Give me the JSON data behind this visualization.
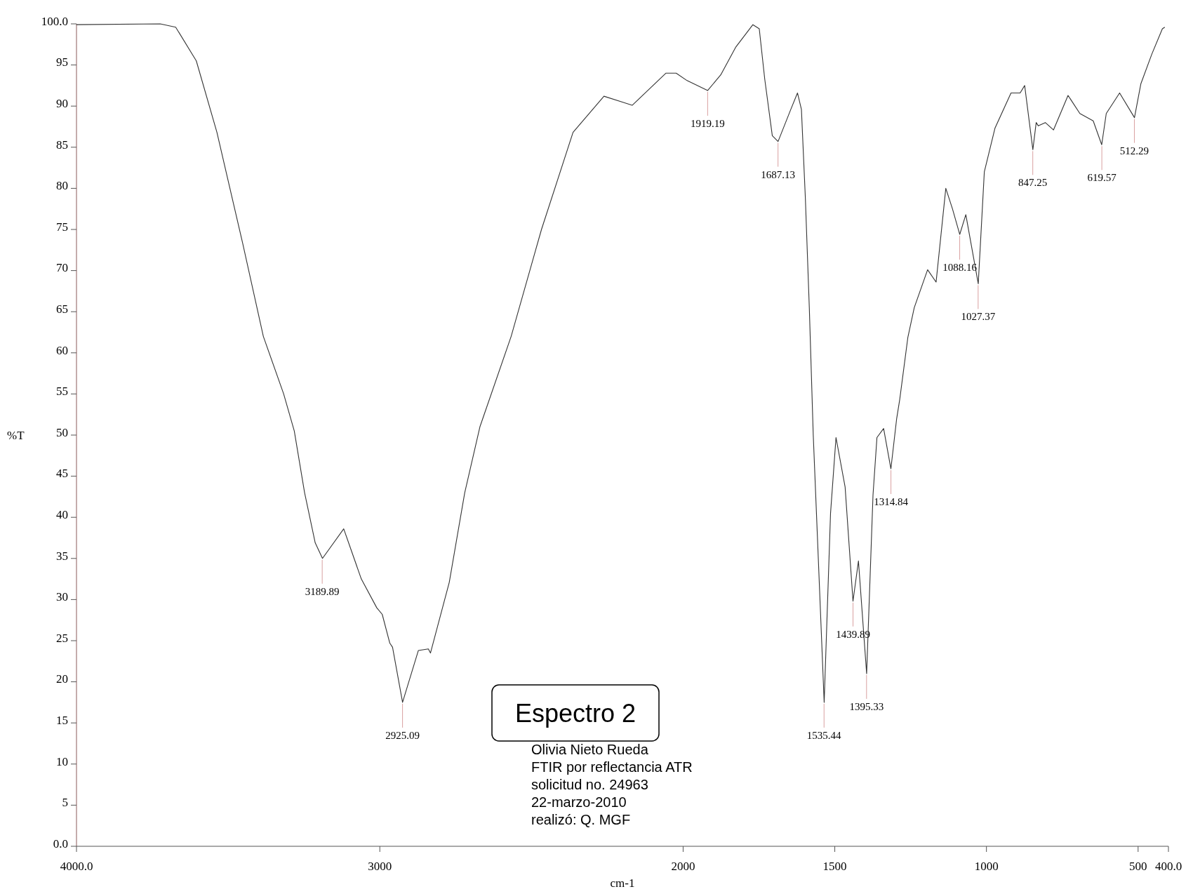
{
  "chart_data": {
    "type": "line",
    "xlabel": "cm-1",
    "ylabel": "%T",
    "xlim": [
      4000,
      400
    ],
    "ylim": [
      0,
      100
    ],
    "xticks": [
      {
        "value": 4000,
        "label": "4000.0"
      },
      3000,
      2000,
      1500,
      1000,
      500,
      {
        "value": 400,
        "label": "400.0"
      }
    ],
    "yticks": [
      {
        "value": 0,
        "label": "0.0"
      },
      5,
      10,
      15,
      20,
      25,
      30,
      35,
      40,
      45,
      50,
      55,
      60,
      65,
      70,
      75,
      80,
      85,
      90,
      95,
      {
        "value": 100,
        "label": "100.0"
      }
    ],
    "grid": false,
    "marker": "none",
    "line_style": "solid",
    "series": [
      {
        "color": "#333333",
        "x": [
          4000,
          3724,
          3673,
          3605,
          3537,
          3452,
          3384,
          3317,
          3282,
          3248,
          3213,
          3189,
          3119,
          3061,
          3010,
          2992,
          2967,
          2958,
          2925,
          2873,
          2840,
          2833,
          2771,
          2720,
          2670,
          2567,
          2467,
          2363,
          2261,
          2202,
          2168,
          2057,
          2023,
          1987,
          1919,
          1876,
          1826,
          1770,
          1749,
          1731,
          1706,
          1687,
          1645,
          1623,
          1610,
          1597,
          1584,
          1571,
          1558,
          1535,
          1514,
          1496,
          1466,
          1440,
          1422,
          1395,
          1374,
          1361,
          1339,
          1315,
          1296,
          1286,
          1259,
          1238,
          1194,
          1166,
          1134,
          1112,
          1088,
          1068,
          1027,
          1007,
          972,
          919,
          889,
          874,
          847,
          836,
          829,
          806,
          779,
          731,
          692,
          648,
          620,
          605,
          561,
          512,
          491,
          455,
          420,
          412
        ],
        "values": [
          99.9,
          100,
          99.6,
          95.5,
          86.8,
          73.3,
          62,
          55,
          50.5,
          43,
          36.9,
          35,
          38.6,
          32.5,
          29,
          28.2,
          24.7,
          24.2,
          17.5,
          23.8,
          24,
          23.5,
          32.1,
          43,
          51,
          62,
          75,
          86.8,
          91.2,
          90.5,
          90.1,
          94,
          94,
          93.1,
          91.9,
          93.8,
          97.2,
          99.9,
          99.4,
          93.3,
          86.4,
          85.7,
          89.6,
          91.6,
          89.6,
          78.8,
          65.5,
          50,
          38.3,
          17.5,
          40.5,
          49.7,
          43.7,
          29.8,
          34.7,
          21,
          42.7,
          49.7,
          50.8,
          45.9,
          52,
          54.3,
          61.9,
          65.5,
          70.1,
          68.6,
          80,
          77.5,
          74.4,
          76.8,
          68.4,
          82,
          87.3,
          91.6,
          91.6,
          92.5,
          84.7,
          88,
          87.6,
          88,
          87.1,
          91.3,
          89.1,
          88.2,
          85.3,
          89.1,
          91.6,
          88.6,
          92.7,
          96.3,
          99.4,
          99.6
        ]
      }
    ],
    "annotations": [
      {
        "text": "3189.89",
        "x": 3189.89,
        "y": 35
      },
      {
        "text": "2925.09",
        "x": 2925.09,
        "y": 17.5
      },
      {
        "text": "1919.19",
        "x": 1919.19,
        "y": 91.9
      },
      {
        "text": "1687.13",
        "x": 1687.13,
        "y": 85.7
      },
      {
        "text": "1535.44",
        "x": 1535.44,
        "y": 17.5
      },
      {
        "text": "1439.89",
        "x": 1439.89,
        "y": 29.8
      },
      {
        "text": "1395.33",
        "x": 1395.33,
        "y": 21
      },
      {
        "text": "1314.84",
        "x": 1314.84,
        "y": 45.9
      },
      {
        "text": "1088.16",
        "x": 1088.16,
        "y": 74.4
      },
      {
        "text": "1027.37",
        "x": 1027.37,
        "y": 68.4
      },
      {
        "text": "847.25",
        "x": 847.25,
        "y": 84.7
      },
      {
        "text": "619.57",
        "x": 619.57,
        "y": 85.3
      },
      {
        "text": "512.29",
        "x": 512.29,
        "y": 88.6
      },
      "Espectro 2",
      "Olivia Nieto Rueda",
      "FTIR por reflectancia ATR",
      "solicitud no. 24963",
      "22-marzo-2010",
      "realizó: Q. MGF"
    ]
  }
}
